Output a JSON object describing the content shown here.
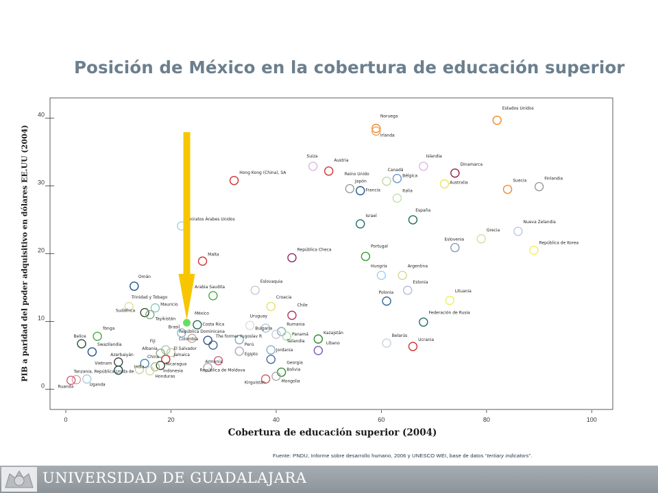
{
  "slide": {
    "title": "Posición de México en la cobertura de educación superior",
    "source_prefix": "Fuente:  PNDU, Informe sobre desarrollo humano, 2006 y UNESCO WEI, base de datos “",
    "source_italic": "tertiary indicators",
    "source_suffix": "”.",
    "footer_text": "UNIVERSIDAD DE GUADALAJARA"
  },
  "chart_data": {
    "type": "scatter",
    "title": "",
    "xlabel": "Cobertura de educación superior (2004)",
    "ylabel": "PIB a paridad del poder adquisitivo en dólares EE.UU  (2004)",
    "xlim": [
      -3,
      104
    ],
    "ylim": [
      -3,
      43
    ],
    "xticks": [
      0,
      20,
      40,
      60,
      80,
      100
    ],
    "yticks": [
      0,
      10,
      20,
      30,
      40
    ],
    "grid": false,
    "legend": "none",
    "highlight": {
      "name": "México",
      "x": 23,
      "y": 9.8,
      "color": "#66dd66",
      "arrow_color": "#f7c600"
    },
    "points": [
      {
        "label": "Estados Unidos",
        "x": 82,
        "y": 39.7,
        "color": "#f08a24"
      },
      {
        "label": "Noruega",
        "x": 59,
        "y": 38.5,
        "color": "#f08a24"
      },
      {
        "label": "Irlanda",
        "x": 59,
        "y": 38.1,
        "color": "#e8a060"
      },
      {
        "label": "Suiza",
        "x": 47,
        "y": 32.9,
        "color": "#d8b8e0"
      },
      {
        "label": "Austria",
        "x": 50,
        "y": 32.2,
        "color": "#d03030"
      },
      {
        "label": "Islandia",
        "x": 68,
        "y": 32.9,
        "color": "#d8b8e0"
      },
      {
        "label": "Dinamarca",
        "x": 74,
        "y": 31.9,
        "color": "#8b2040"
      },
      {
        "label": "Canadá",
        "x": 61,
        "y": 30.7,
        "color": "#c0d8a0"
      },
      {
        "label": "Bélgica",
        "x": 63,
        "y": 31.1,
        "color": "#6699cc"
      },
      {
        "label": "Reino Unido",
        "x": 54,
        "y": 29.6,
        "color": "#999999"
      },
      {
        "label": "Japón",
        "x": 56,
        "y": 29.3,
        "color": "#336699"
      },
      {
        "label": "Francia",
        "x": 56,
        "y": 29.3,
        "color": "#336699"
      },
      {
        "label": "Australia",
        "x": 72,
        "y": 30.3,
        "color": "#f0e060"
      },
      {
        "label": "Italia",
        "x": 63,
        "y": 28.2,
        "color": "#c0e0b0"
      },
      {
        "label": "Suecia",
        "x": 84,
        "y": 29.5,
        "color": "#f08a24"
      },
      {
        "label": "Finlandia",
        "x": 90,
        "y": 29.9,
        "color": "#999999"
      },
      {
        "label": "Hong Kong (China), SA",
        "x": 32,
        "y": 30.8,
        "color": "#d03030"
      },
      {
        "label": "Emiratos Árabes Unidos",
        "x": 22,
        "y": 24.1,
        "color": "#a0d0e0"
      },
      {
        "label": "Israel",
        "x": 56,
        "y": 24.4,
        "color": "#1f6b6b"
      },
      {
        "label": "España",
        "x": 66,
        "y": 25.0,
        "color": "#1f6b4f"
      },
      {
        "label": "Nueva Zelandia",
        "x": 86,
        "y": 23.3,
        "color": "#b8c8e8"
      },
      {
        "label": "Grecia",
        "x": 79,
        "y": 22.2,
        "color": "#d8e0a0"
      },
      {
        "label": "Eslovenia",
        "x": 74,
        "y": 20.9,
        "color": "#8899bb"
      },
      {
        "label": "República de Korea",
        "x": 89,
        "y": 20.5,
        "color": "#f0f060"
      },
      {
        "label": "Malta",
        "x": 26,
        "y": 18.9,
        "color": "#d03030"
      },
      {
        "label": "República Checa",
        "x": 43,
        "y": 19.4,
        "color": "#8b2060"
      },
      {
        "label": "Portugal",
        "x": 57,
        "y": 19.6,
        "color": "#339933"
      },
      {
        "label": "Hungría",
        "x": 60,
        "y": 16.8,
        "color": "#a0d0f0"
      },
      {
        "label": "Argentina",
        "x": 64,
        "y": 16.8,
        "color": "#d8d890"
      },
      {
        "label": "Estonia",
        "x": 65,
        "y": 14.6,
        "color": "#b0b8e0"
      },
      {
        "label": "Omán",
        "x": 13,
        "y": 15.2,
        "color": "#1f4f8b"
      },
      {
        "label": "Eslovaquia",
        "x": 36,
        "y": 14.6,
        "color": "#c8c8d8"
      },
      {
        "label": "Arabia Saudita",
        "x": 28,
        "y": 13.8,
        "color": "#44aa44"
      },
      {
        "label": "Polonia",
        "x": 61,
        "y": 13.0,
        "color": "#336699"
      },
      {
        "label": "Lituania",
        "x": 73,
        "y": 13.1,
        "color": "#f0f060"
      },
      {
        "label": "Trinidad y Tobago",
        "x": 12,
        "y": 12.2,
        "color": "#e0e0a0"
      },
      {
        "label": "Mauricio",
        "x": 17,
        "y": 12.0,
        "color": "#88ccbb"
      },
      {
        "label": "Sudáfrica",
        "x": 15,
        "y": 11.3,
        "color": "#2f4f2f"
      },
      {
        "label": "Croacia",
        "x": 39,
        "y": 12.2,
        "color": "#e8e070"
      },
      {
        "label": "Chile",
        "x": 43,
        "y": 10.9,
        "color": "#b03060"
      },
      {
        "label": "Federación de Rusia",
        "x": 68,
        "y": 9.9,
        "color": "#1f6b6b"
      },
      {
        "label": "Tayikistán",
        "x": 16,
        "y": 11.0,
        "color": "#88aa88"
      },
      {
        "label": "Brasil",
        "x": 22,
        "y": 8.3,
        "color": "#88bbcc"
      },
      {
        "label": "Costa Rica",
        "x": 25,
        "y": 9.5,
        "color": "#1f6b4f"
      },
      {
        "label": "República Dominicana",
        "x": 24,
        "y": 7.5,
        "color": "#c8a8a8"
      },
      {
        "label": "Uruguay",
        "x": 35,
        "y": 9.4,
        "color": "#dddddd"
      },
      {
        "label": "Bulgaria",
        "x": 38,
        "y": 9.0,
        "color": "#b0c8d8"
      },
      {
        "label": "Rumania",
        "x": 41,
        "y": 8.5,
        "color": "#88aabb"
      },
      {
        "label": "Kazajstán",
        "x": 48,
        "y": 7.4,
        "color": "#2f8b2f"
      },
      {
        "label": "Panamá",
        "x": 42,
        "y": 7.8,
        "color": "#b0e0b0"
      },
      {
        "label": "Belice",
        "x": 3,
        "y": 6.7,
        "color": "#1f4f2f"
      },
      {
        "label": "Tonga",
        "x": 6,
        "y": 7.8,
        "color": "#44aa44"
      },
      {
        "label": "Swazilandia",
        "x": 5,
        "y": 5.5,
        "color": "#1f4f8b"
      },
      {
        "label": "Colombia",
        "x": 27,
        "y": 7.2,
        "color": "#2f4f8b"
      },
      {
        "label": "The former Yugoslav R",
        "x": 33,
        "y": 7.3,
        "color": "#88aabb"
      },
      {
        "label": "Tailandia",
        "x": 40,
        "y": 8.1,
        "color": "#ccccdd"
      },
      {
        "label": "Líbano",
        "x": 48,
        "y": 5.7,
        "color": "#7755aa"
      },
      {
        "label": "Perú",
        "x": 28,
        "y": 6.5,
        "color": "#446688"
      },
      {
        "label": "Belarús",
        "x": 61,
        "y": 6.8,
        "color": "#c8d0d8"
      },
      {
        "label": "Ucrania",
        "x": 66,
        "y": 6.3,
        "color": "#d03030"
      },
      {
        "label": "Fiji",
        "x": 19,
        "y": 5.8,
        "color": "#a0d0a0"
      },
      {
        "label": "Albania",
        "x": 18,
        "y": 5.3,
        "color": "#88aa88"
      },
      {
        "label": "El Salvador",
        "x": 20,
        "y": 5.4,
        "color": "#c8c8b0"
      },
      {
        "label": "Jamaica",
        "x": 19,
        "y": 4.4,
        "color": "#d03030"
      },
      {
        "label": "Jordania",
        "x": 39,
        "y": 5.8,
        "color": "#88aacc"
      },
      {
        "label": "Egipto",
        "x": 33,
        "y": 5.6,
        "color": "#aaaaaa"
      },
      {
        "label": "Azerbaiyán",
        "x": 10,
        "y": 4.0,
        "color": "#444444"
      },
      {
        "label": "China",
        "x": 15,
        "y": 3.8,
        "color": "#4488bb"
      },
      {
        "label": "Armenia",
        "x": 29,
        "y": 4.2,
        "color": "#c86080"
      },
      {
        "label": "Georgia",
        "x": 39,
        "y": 4.4,
        "color": "#446699"
      },
      {
        "label": "Vietnam",
        "x": 10,
        "y": 2.8,
        "color": "#1f4f4f"
      },
      {
        "label": "India",
        "x": 14,
        "y": 2.9,
        "color": "#d0d0a0"
      },
      {
        "label": "Nicaragua",
        "x": 18,
        "y": 3.5,
        "color": "#2f4f2f"
      },
      {
        "label": "Indonesia",
        "x": 17,
        "y": 3.3,
        "color": "#aabb88"
      },
      {
        "label": "República de Moldova",
        "x": 27,
        "y": 3.2,
        "color": "#b0a0c0"
      },
      {
        "label": "Bolivia",
        "x": 41,
        "y": 2.5,
        "color": "#2f8b2f"
      },
      {
        "label": "Honduras",
        "x": 16,
        "y": 2.7,
        "color": "#d8d8b0"
      },
      {
        "label": "Tanzania, República Unida de",
        "x": 2,
        "y": 1.4,
        "color": "#e0a0a0"
      },
      {
        "label": "Uganda",
        "x": 4,
        "y": 1.5,
        "color": "#aaccdd"
      },
      {
        "label": "Ruanda",
        "x": 1,
        "y": 1.3,
        "color": "#d06080"
      },
      {
        "label": "Mongolia",
        "x": 40,
        "y": 1.9,
        "color": "#aaaaaa"
      },
      {
        "label": "Kirguistán",
        "x": 38,
        "y": 1.5,
        "color": "#c86060"
      }
    ],
    "point_labels": [
      {
        "text": "Estados Unidos",
        "x": 83,
        "y": 41.3
      },
      {
        "text": "Noruega",
        "x": 59.8,
        "y": 40.1
      },
      {
        "text": "Irlanda",
        "x": 59.8,
        "y": 37.3
      },
      {
        "text": "Suiza",
        "x": 45.8,
        "y": 34.2
      },
      {
        "text": "Austria",
        "x": 51,
        "y": 33.6
      },
      {
        "text": "Islandia",
        "x": 68.5,
        "y": 34.2
      },
      {
        "text": "Dinamarca",
        "x": 75,
        "y": 33.0
      },
      {
        "text": "Canadá",
        "x": 61.2,
        "y": 32.2
      },
      {
        "text": "Reino Unido",
        "x": 53,
        "y": 31.6
      },
      {
        "text": "Bélgica",
        "x": 64,
        "y": 31.3
      },
      {
        "text": "Japón",
        "x": 55,
        "y": 30.5
      },
      {
        "text": "Australia",
        "x": 73,
        "y": 30.3
      },
      {
        "text": "Suecia",
        "x": 85,
        "y": 30.6
      },
      {
        "text": "Finlandia",
        "x": 91,
        "y": 30.9
      },
      {
        "text": "Francia",
        "x": 57,
        "y": 29.2
      },
      {
        "text": "Italia",
        "x": 64,
        "y": 29.1
      },
      {
        "text": "Hong Kong (China), SA",
        "x": 33,
        "y": 31.8
      },
      {
        "text": "España",
        "x": 66.5,
        "y": 26.2
      },
      {
        "text": "Israel",
        "x": 57,
        "y": 25.4
      },
      {
        "text": "Emiratos Árabes Unidos",
        "x": 22.8,
        "y": 24.9
      },
      {
        "text": "Nueva Zelandia",
        "x": 87,
        "y": 24.5
      },
      {
        "text": "Grecia",
        "x": 80,
        "y": 23.3
      },
      {
        "text": "Eslovenia",
        "x": 72,
        "y": 21.9
      },
      {
        "text": "República de Korea",
        "x": 90,
        "y": 21.4
      },
      {
        "text": "Portugal",
        "x": 58,
        "y": 20.9
      },
      {
        "text": "República Checa",
        "x": 44,
        "y": 20.4
      },
      {
        "text": "Malta",
        "x": 27,
        "y": 19.7
      },
      {
        "text": "Hungría",
        "x": 58,
        "y": 18.0
      },
      {
        "text": "Argentina",
        "x": 65,
        "y": 18.0
      },
      {
        "text": "Omán",
        "x": 13.8,
        "y": 16.4
      },
      {
        "text": "Eslovaquia",
        "x": 37,
        "y": 15.7
      },
      {
        "text": "Estonia",
        "x": 66,
        "y": 15.6
      },
      {
        "text": "Arabia Saudita",
        "x": 24.5,
        "y": 14.9
      },
      {
        "text": "Lituania",
        "x": 74,
        "y": 14.3
      },
      {
        "text": "Polonia",
        "x": 59.5,
        "y": 14.1
      },
      {
        "text": "Trinidad y Tobago",
        "x": 12.5,
        "y": 13.4
      },
      {
        "text": "Croacia",
        "x": 40,
        "y": 13.4
      },
      {
        "text": "Mauricio",
        "x": 18,
        "y": 12.3
      },
      {
        "text": "Chile",
        "x": 44,
        "y": 12.2
      },
      {
        "text": "Sudáfrica",
        "x": 9.5,
        "y": 11.4
      },
      {
        "text": "Federación de Rusia",
        "x": 69,
        "y": 11.1
      },
      {
        "text": "México",
        "x": 24.5,
        "y": 11.0
      },
      {
        "text": "Uruguay",
        "x": 35,
        "y": 10.6
      },
      {
        "text": "Tayikistán",
        "x": 17,
        "y": 10.2
      },
      {
        "text": "Costa Rica",
        "x": 26,
        "y": 9.4
      },
      {
        "text": "Rumania",
        "x": 42,
        "y": 9.4
      },
      {
        "text": "Brasil",
        "x": 19.5,
        "y": 9.0
      },
      {
        "text": "Bulgaria",
        "x": 36,
        "y": 8.8
      },
      {
        "text": "República Dominicana",
        "x": 21.5,
        "y": 8.3
      },
      {
        "text": "Kazajstán",
        "x": 49,
        "y": 8.1
      },
      {
        "text": "Tonga",
        "x": 7,
        "y": 8.8
      },
      {
        "text": "Panamá",
        "x": 43,
        "y": 7.9
      },
      {
        "text": "Belice",
        "x": 1.5,
        "y": 7.6
      },
      {
        "text": "The former Yugoslav R",
        "x": 28.5,
        "y": 7.6
      },
      {
        "text": "Colombia",
        "x": 21.5,
        "y": 7.2
      },
      {
        "text": "Tailandia",
        "x": 42,
        "y": 6.9
      },
      {
        "text": "Fiji",
        "x": 16,
        "y": 6.9
      },
      {
        "text": "Perú",
        "x": 34,
        "y": 6.4
      },
      {
        "text": "Líbano",
        "x": 49.5,
        "y": 6.6
      },
      {
        "text": "Swazilandia",
        "x": 6,
        "y": 6.4
      },
      {
        "text": "Belarús",
        "x": 62,
        "y": 7.7
      },
      {
        "text": "Ucrania",
        "x": 67,
        "y": 7.1
      },
      {
        "text": "Albania",
        "x": 14.5,
        "y": 5.8
      },
      {
        "text": "El Salvador",
        "x": 20.5,
        "y": 5.8
      },
      {
        "text": "Jordania",
        "x": 40,
        "y": 5.6
      },
      {
        "text": "Azerbaiyán",
        "x": 8.5,
        "y": 4.9
      },
      {
        "text": "Jamaica",
        "x": 20.5,
        "y": 4.9
      },
      {
        "text": "Egipto",
        "x": 34,
        "y": 5.0
      },
      {
        "text": "China",
        "x": 15.5,
        "y": 4.6
      },
      {
        "text": "Armenia",
        "x": 26.5,
        "y": 3.9
      },
      {
        "text": "Georgia",
        "x": 42,
        "y": 3.7
      },
      {
        "text": "Vietnam",
        "x": 5.5,
        "y": 3.6
      },
      {
        "text": "Nicaragua",
        "x": 19,
        "y": 3.5
      },
      {
        "text": "India",
        "x": 13,
        "y": 3.1
      },
      {
        "text": "Bolivia",
        "x": 42,
        "y": 2.7
      },
      {
        "text": "República de Moldova",
        "x": 25.5,
        "y": 2.6
      },
      {
        "text": "Indonesia",
        "x": 18.5,
        "y": 2.5
      },
      {
        "text": "Tanzania, República Unida de",
        "x": 1.5,
        "y": 2.4
      },
      {
        "text": "Honduras",
        "x": 17,
        "y": 1.7
      },
      {
        "text": "Mongolia",
        "x": 41,
        "y": 1.0
      },
      {
        "text": "Kirguistán",
        "x": 34,
        "y": 0.8
      },
      {
        "text": "Uganda",
        "x": 4.5,
        "y": 0.5
      },
      {
        "text": "Ruanda",
        "x": -1.5,
        "y": 0.2
      }
    ]
  }
}
